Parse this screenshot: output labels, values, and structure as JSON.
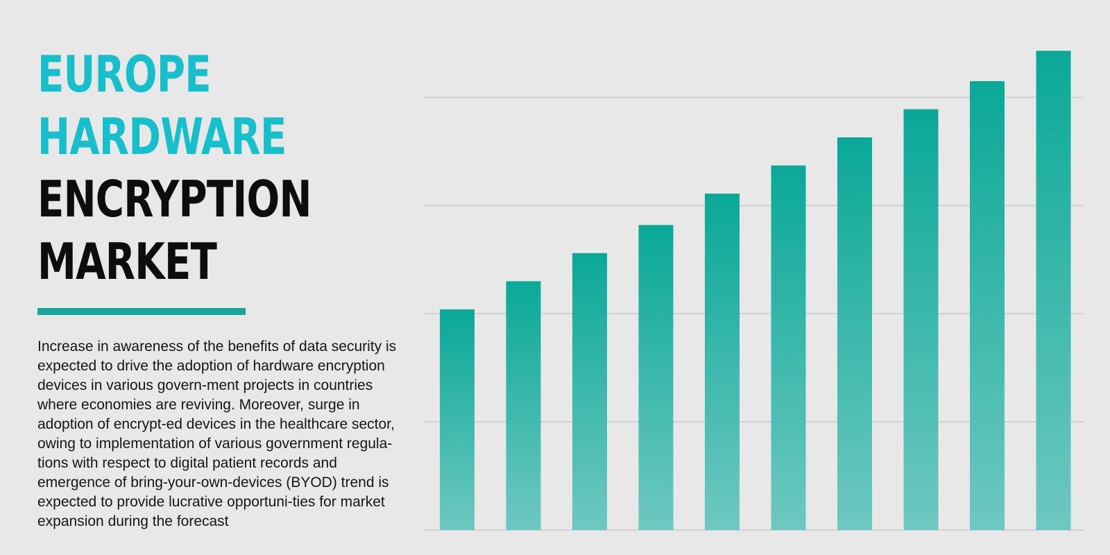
{
  "heading": {
    "line1": "EUROPE",
    "line2": "HARDWARE",
    "line3": "ENCRYPTION",
    "line4": "MARKET"
  },
  "description": "Increase in awareness of the benefits of data security is expected to drive the adoption of hardware encryption devices in various govern-ment projects in countries where economies are reviving. Moreover, surge in adoption of encrypt-ed devices in the healthcare sector, owing to implementation of various government regula-tions with respect to digital patient records and emergence of bring-your-own-devices (BYOD) trend is expected to provide lucrative opportuni-ties for market expansion during the forecast",
  "colors": {
    "title_accent": "#17bfcc",
    "title_dark": "#0d0d0d",
    "rule": "#14a79c",
    "bar_top": "#0aa898",
    "bar_bottom": "#6ec8c0",
    "grid": "#d0d0d0",
    "background": "#e8e8e8"
  },
  "chart_data": {
    "type": "bar",
    "categories": [
      "",
      "",
      "",
      "",
      "",
      "",
      "",
      "",
      "",
      ""
    ],
    "values": [
      2.04,
      2.3,
      2.56,
      2.82,
      3.11,
      3.37,
      3.63,
      3.89,
      4.15,
      4.43
    ],
    "ylim": [
      0,
      4.9
    ],
    "yticks": [
      1,
      2,
      3,
      4
    ],
    "grid": true,
    "legend": "none"
  }
}
